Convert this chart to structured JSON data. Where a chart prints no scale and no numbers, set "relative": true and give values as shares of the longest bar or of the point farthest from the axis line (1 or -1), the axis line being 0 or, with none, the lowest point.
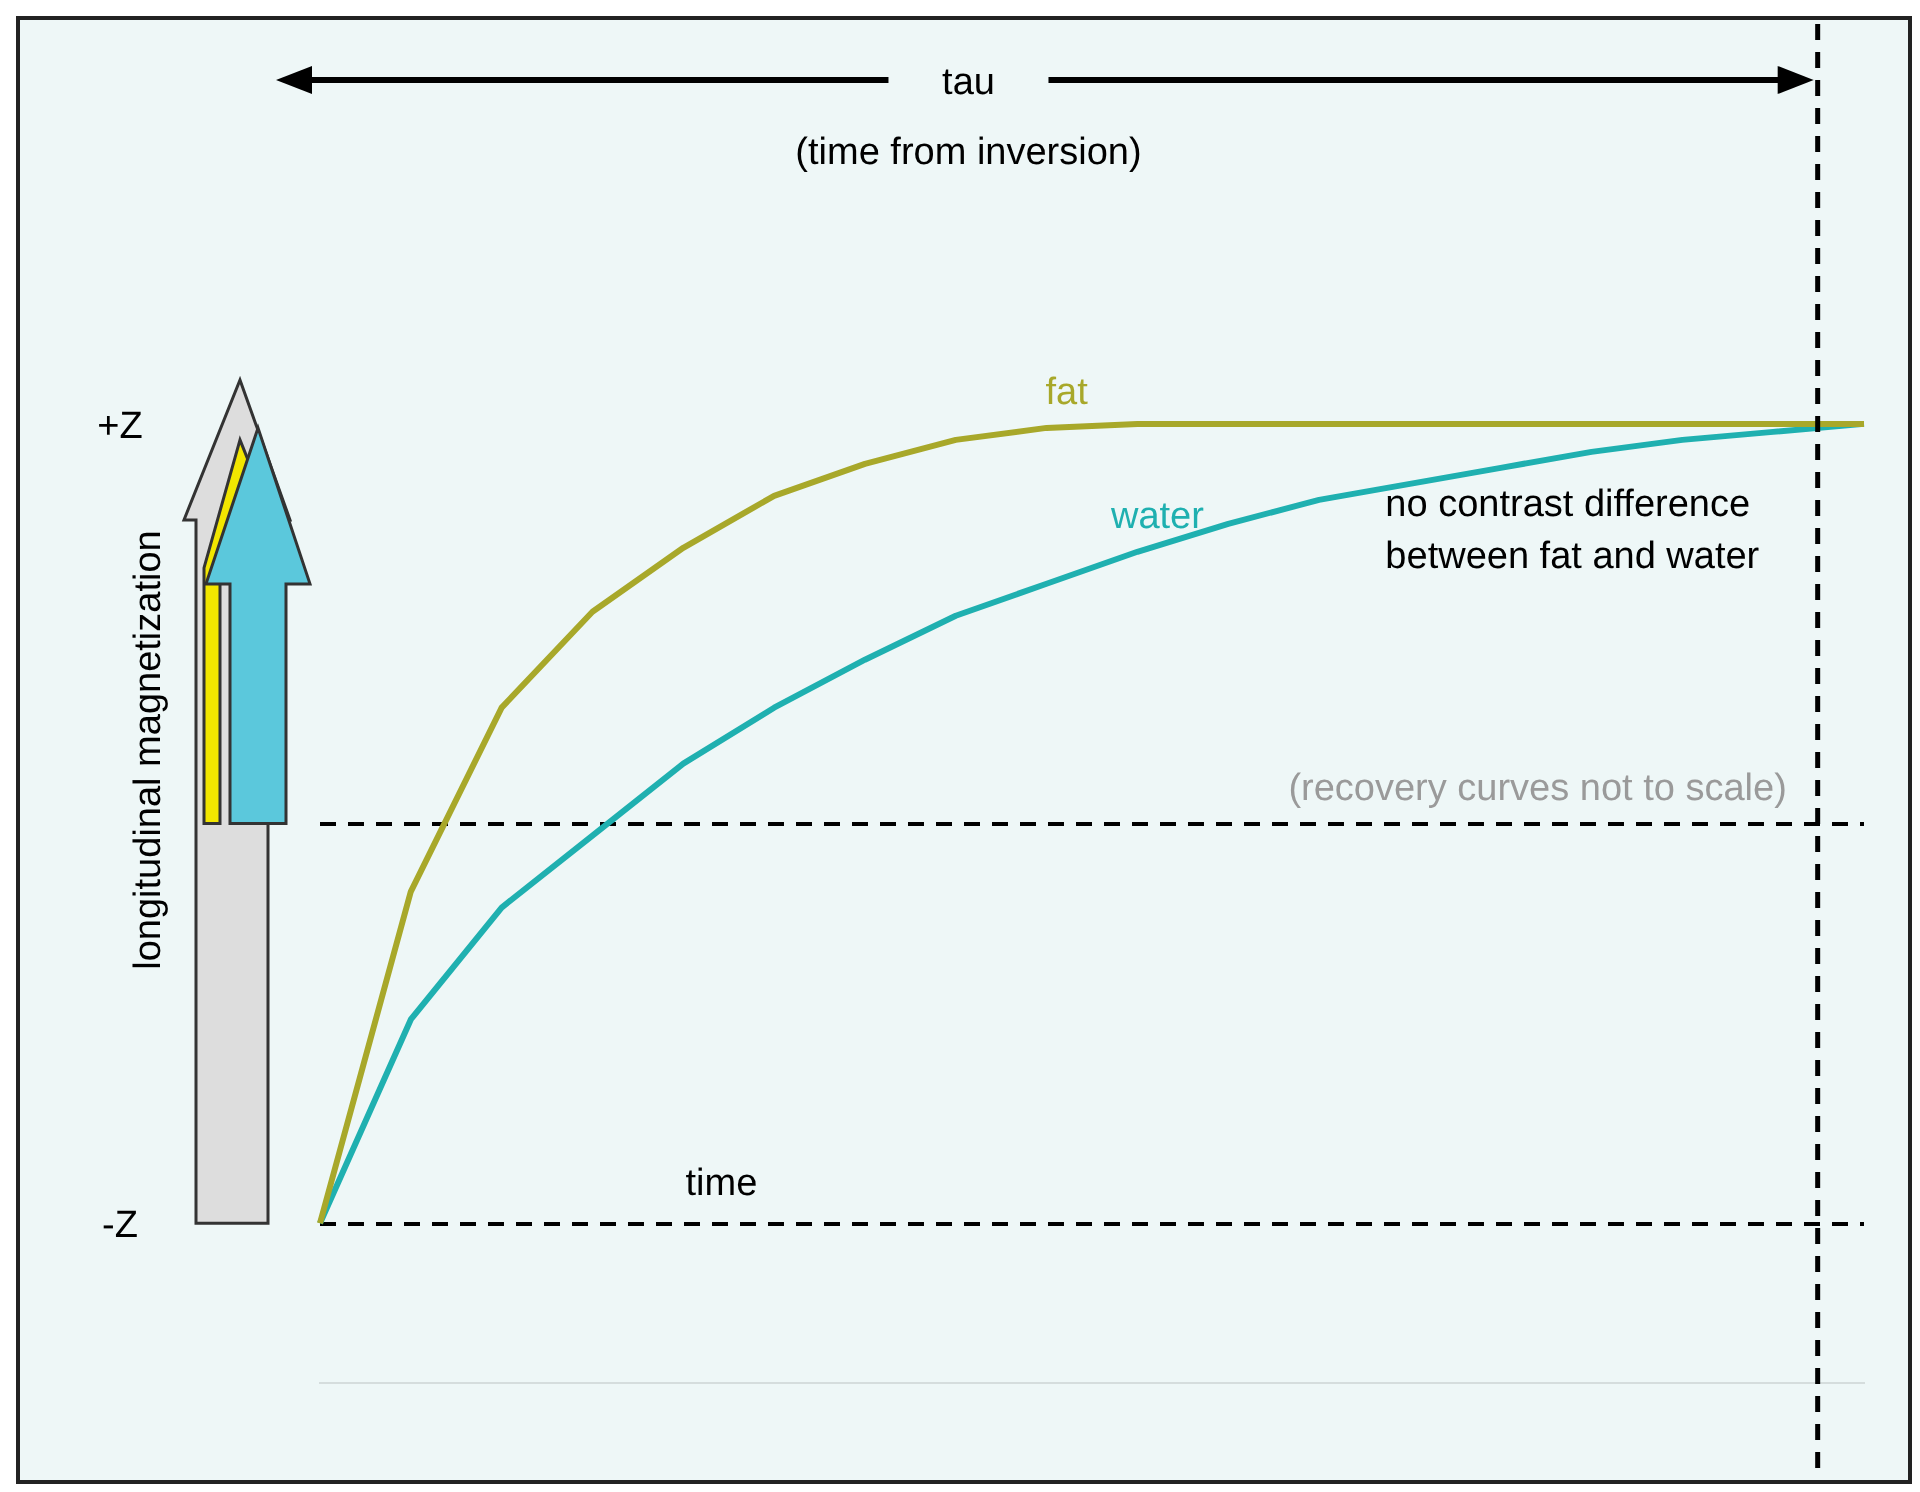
{
  "chart_data": {
    "type": "line",
    "ylabel": "longitudinal magnetization",
    "relative": true,
    "categories": [
      null,
      null,
      null,
      null,
      null,
      null,
      null,
      null,
      null,
      null,
      null,
      null,
      null,
      null,
      null,
      null,
      null,
      null
    ],
    "series": [
      {
        "name": "fat",
        "color": "#a8a82a",
        "values": [
          0,
          0.415,
          0.645,
          0.765,
          0.845,
          0.91,
          0.95,
          0.98,
          0.995,
          1,
          1,
          1,
          1,
          1,
          1,
          1,
          1,
          1
        ]
      },
      {
        "name": "water",
        "color": "#1fb0b0",
        "values": [
          0,
          0.255,
          0.395,
          0.485,
          0.575,
          0.645,
          0.705,
          0.76,
          0.8,
          0.84,
          0.875,
          0.905,
          0.925,
          0.945,
          0.965,
          0.98,
          0.99,
          1
        ]
      }
    ],
    "grid": false,
    "legend": false,
    "marker": "none",
    "line_style": "solid",
    "ref_lines": [
      {
        "axis": "y",
        "value": 0.5,
        "color": "#000000",
        "line_style": "dashed"
      },
      {
        "axis": "y",
        "value": 0,
        "color": "#000000",
        "line_style": "dashed"
      }
    ],
    "annotations": [
      "tau",
      "(time from inversion)",
      "no contrast difference between fat and water",
      "(recovery curves not to scale)",
      "time",
      "+Z",
      "-Z"
    ]
  }
}
